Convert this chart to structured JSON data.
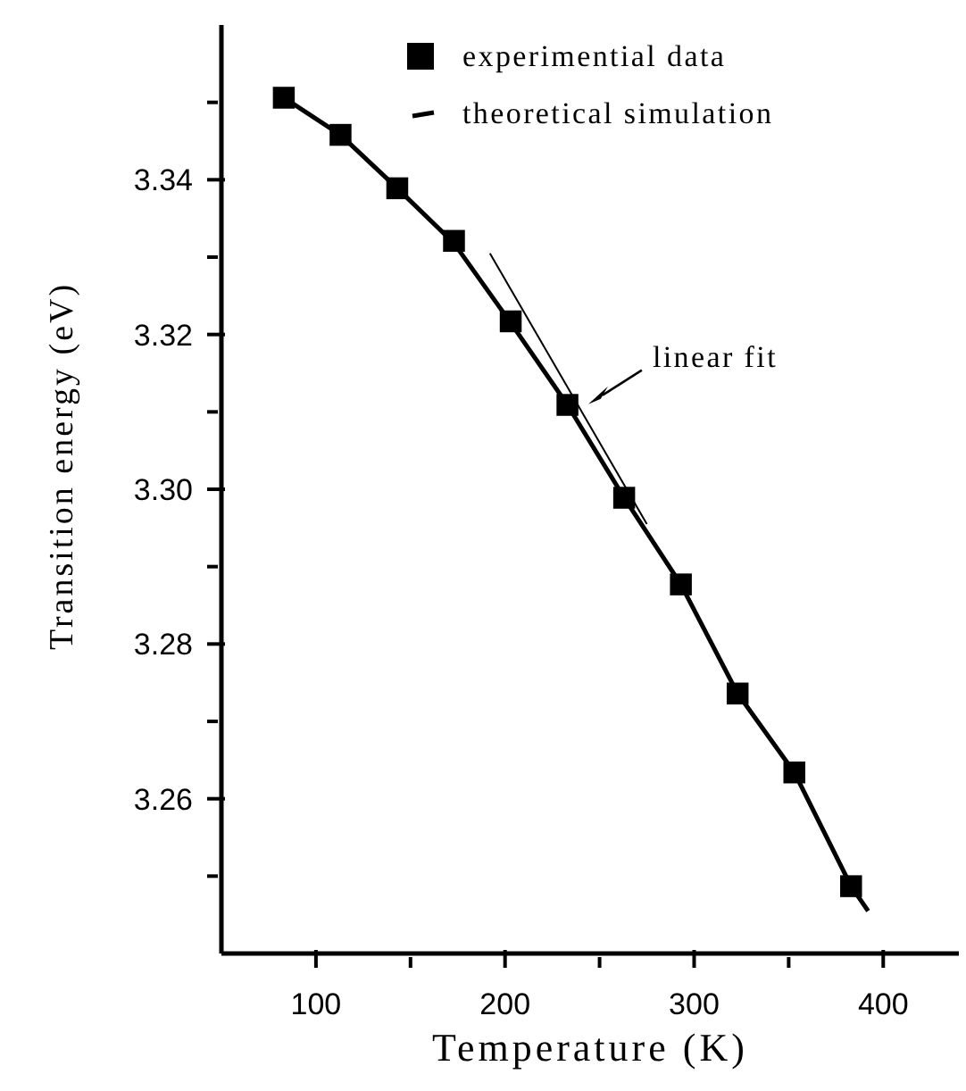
{
  "chart_data": {
    "type": "scatter",
    "xlabel": "Temperature (K)",
    "ylabel": "Transition energy (eV)",
    "xlim": [
      50,
      440
    ],
    "xticks": [
      100,
      {
        "value": 150,
        "label": null
      },
      200,
      {
        "value": 250,
        "label": null
      },
      300,
      {
        "value": 350,
        "label": null
      },
      400
    ],
    "ylim": [
      3.24,
      3.36
    ],
    "yticks": [
      {
        "value": 3.25,
        "label": null
      },
      3.26,
      {
        "value": 3.27,
        "label": null
      },
      3.28,
      {
        "value": 3.29,
        "label": null
      },
      {
        "value": 3.3,
        "label": "3.30"
      },
      {
        "value": 3.31,
        "label": null
      },
      3.32,
      {
        "value": 3.33,
        "label": null
      },
      3.34,
      {
        "value": 3.35,
        "label": null
      }
    ],
    "legend": "top",
    "grid": false,
    "annotations": [
      {
        "text": "linear fit",
        "x": 244,
        "y": 3.311
      }
    ],
    "series": [
      {
        "name": "experimential data",
        "marker": "square",
        "color": "#000000",
        "x": [
          83,
          113,
          143,
          173,
          203,
          233,
          263,
          293,
          323,
          353,
          383
        ],
        "values": [
          3.3506,
          3.3458,
          3.3389,
          3.3321,
          3.3217,
          3.3109,
          3.2989,
          3.2877,
          3.2736,
          3.2634,
          3.2487
        ]
      },
      {
        "name": "theoretical simulation",
        "type": "line",
        "marker": "none",
        "color": "#000000",
        "x": [
          83,
          113,
          143,
          173,
          203,
          233,
          263,
          293,
          323,
          353,
          383,
          392
        ],
        "values": [
          3.3506,
          3.3458,
          3.3389,
          3.3318,
          3.3215,
          3.3109,
          3.2989,
          3.2877,
          3.2736,
          3.2634,
          3.2487,
          3.2455
        ]
      },
      {
        "type": "line",
        "marker": "none",
        "color": "#000000",
        "x": [
          192,
          275
        ],
        "values": [
          3.3305,
          3.2955
        ]
      }
    ]
  }
}
